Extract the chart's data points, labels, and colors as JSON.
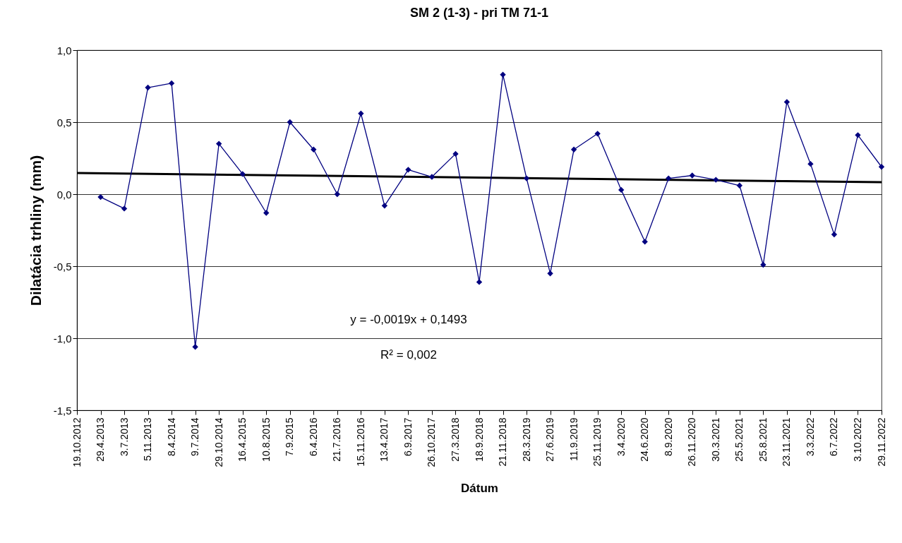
{
  "chart_data": {
    "type": "line",
    "title": "SM 2 (1-3) - pri TM 71-1",
    "xlabel": "Dátum",
    "ylabel": "Dilatácia trhliny (mm)",
    "categories": [
      "19.10.2012",
      "29.4.2013",
      "3.7.2013",
      "5.11.2013",
      "8.4.2014",
      "9.7.2014",
      "29.10.2014",
      "16.4.2015",
      "10.8.2015",
      "7.9.2015",
      "6.4.2016",
      "21.7.2016",
      "15.11.2016",
      "13.4.2017",
      "6.9.2017",
      "26.10.2017",
      "27.3.2018",
      "18.9.2018",
      "21.11.2018",
      "28.3.2019",
      "27.6.2019",
      "11.9.2019",
      "25.11.2019",
      "3.4.2020",
      "24.6.2020",
      "8.9.2020",
      "26.11.2020",
      "30.3.2021",
      "25.5.2021",
      "25.8.2021",
      "23.11.2021",
      "3.3.2022",
      "6.7.2022",
      "3.10.2022",
      "29.11.2022"
    ],
    "series": [
      {
        "color": "#000080",
        "marker": "diamond",
        "values": [
          null,
          -0.02,
          -0.1,
          0.74,
          0.77,
          -1.06,
          0.35,
          0.14,
          -0.13,
          0.5,
          0.31,
          0.0,
          0.56,
          -0.08,
          0.17,
          0.12,
          0.28,
          -0.61,
          0.83,
          0.11,
          -0.55,
          0.31,
          0.42,
          0.03,
          -0.33,
          0.11,
          0.13,
          0.1,
          0.06,
          -0.49,
          0.64,
          0.21,
          -0.28,
          0.41,
          0.19
        ]
      },
      {
        "type": "line",
        "color": "#000000",
        "marker": "none",
        "x": [
          "19.10.2012",
          "29.11.2022"
        ],
        "values": [
          0.147,
          0.083
        ]
      }
    ],
    "ylim": [
      -1.5,
      1.0
    ],
    "yticks": [
      {
        "value": -1.5,
        "label": "-1,5"
      },
      {
        "value": -1.0,
        "label": "-1,0"
      },
      {
        "value": -0.5,
        "label": "-0,5"
      },
      {
        "value": 0,
        "label": "0,0"
      },
      {
        "value": 0.5,
        "label": "0,5"
      },
      {
        "value": 1.0,
        "label": "1,0"
      }
    ],
    "grid": "y",
    "annotations": [
      "y = -0,0019x + 0,1493",
      "R² = 0,002"
    ]
  }
}
